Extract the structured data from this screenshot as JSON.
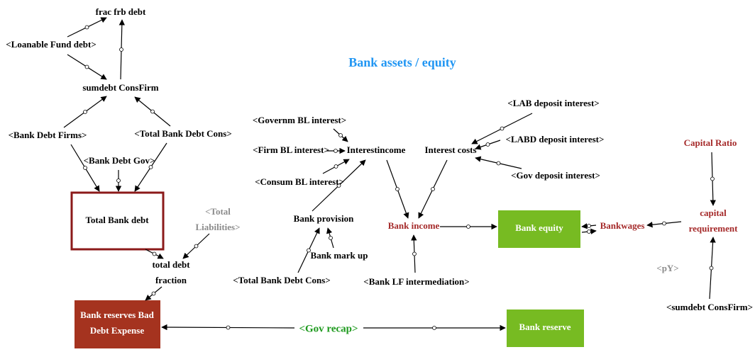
{
  "title": "Bank assets / equity",
  "nodes": [
    {
      "label": "frac frb debt"
    },
    {
      "label": "<Loanable Fund debt>"
    },
    {
      "label": "sumdebt ConsFirm"
    },
    {
      "label": "<Bank Debt Firms>"
    },
    {
      "label": "<Total Bank Debt Cons>"
    },
    {
      "label": "<Bank Debt Gov>"
    },
    {
      "label": "Total Bank debt"
    },
    {
      "label": [
        "<Total",
        "Liabilities>"
      ]
    },
    {
      "label": [
        "total debt",
        "fraction"
      ]
    },
    {
      "label": [
        "Bank reserves Bad",
        "Debt Expense"
      ]
    },
    {
      "label": "<Gov recap>"
    },
    {
      "label": "Bank reserve"
    },
    {
      "label": "<Governm BL interest>"
    },
    {
      "label": "<Firm BL interest>"
    },
    {
      "label": "Interestincome"
    },
    {
      "label": "<Consum BL interest>"
    },
    {
      "label": "Interest costs"
    },
    {
      "label": "<LAB deposit interest>"
    },
    {
      "label": "<LABD deposit interest>"
    },
    {
      "label": "<Gov deposit interest>"
    },
    {
      "label": "Capital Ratio"
    },
    {
      "label": "Bank provision"
    },
    {
      "label": "Bank income"
    },
    {
      "label": "Bank equity"
    },
    {
      "label": "Bankwages"
    },
    {
      "label": [
        "capital",
        "requirement"
      ]
    },
    {
      "label": "Bank mark up"
    },
    {
      "label": "<Total Bank Debt Cons>"
    },
    {
      "label": "<Bank LF intermediation>"
    },
    {
      "label": "<pY>"
    },
    {
      "label": "<sumdebt ConsFirm>"
    }
  ]
}
